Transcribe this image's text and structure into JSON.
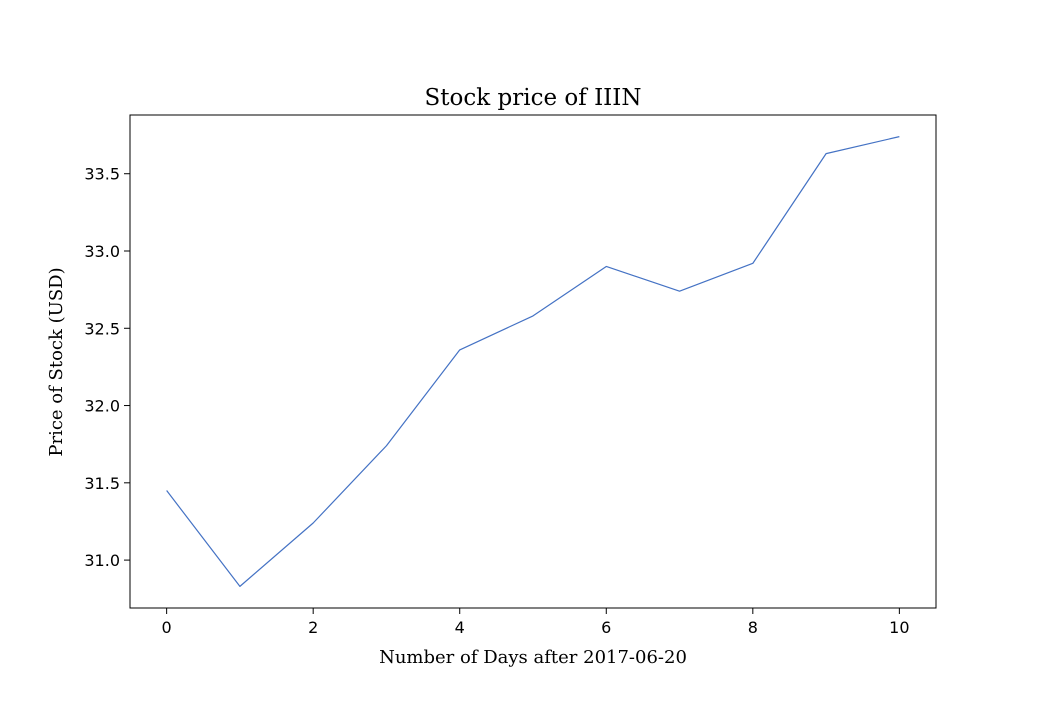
{
  "chart_data": {
    "type": "line",
    "title": "Stock price of IIIN",
    "xlabel": "Number of Days after 2017-06-20",
    "ylabel": "Price of Stock (USD)",
    "x": [
      0,
      1,
      2,
      3,
      4,
      5,
      6,
      7,
      8,
      9,
      10
    ],
    "series": [
      {
        "values": [
          31.45,
          30.83,
          31.24,
          31.74,
          32.36,
          32.58,
          32.9,
          32.74,
          32.92,
          33.63,
          33.74
        ],
        "color": "#4472c4"
      }
    ],
    "xlim": [
      -0.5,
      10.5
    ],
    "ylim": [
      30.69,
      33.88
    ],
    "xticks": [
      0,
      2,
      4,
      6,
      8,
      10
    ],
    "yticks": [
      31.0,
      31.5,
      32.0,
      32.5,
      33.0,
      33.5
    ],
    "xtick_labels": [
      "0",
      "2",
      "4",
      "6",
      "8",
      "10"
    ],
    "ytick_labels": [
      "31.0",
      "31.5",
      "32.0",
      "32.5",
      "33.0",
      "33.5"
    ],
    "grid": false,
    "legend": "none"
  }
}
